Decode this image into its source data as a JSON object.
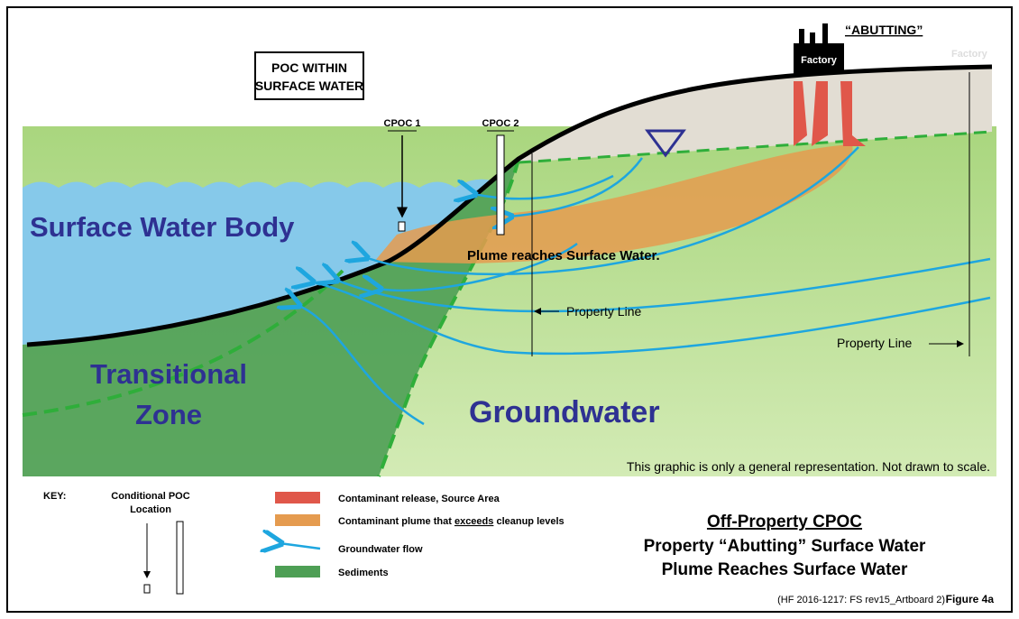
{
  "labels": {
    "abutting": "“ABUTTING”",
    "factory": "Factory",
    "factory_faint": "Factory",
    "poc_box": [
      "POC WITHIN",
      "SURFACE WATER"
    ],
    "cpoc1": "CPOC 1",
    "cpoc2": "CPOC 2",
    "surface_water": "Surface Water Body",
    "transitional_zone": [
      "Transitional",
      "Zone"
    ],
    "groundwater": "Groundwater",
    "plume": "Plume reaches Surface Water.",
    "property_line_1": "Property Line",
    "property_line_2": "Property Line",
    "disclaimer": "This graphic is only a general representation.  Not drawn to scale."
  },
  "key": {
    "title": "KEY:",
    "poc": [
      "Conditional POC",
      "Location"
    ],
    "source_area": "Contaminant release, Source Area",
    "plume": [
      "Contaminant plume that ",
      "exceeds",
      " cleanup levels"
    ],
    "flow": "Groundwater flow",
    "sediments": "Sediments"
  },
  "figure": {
    "title": "Off-Property CPOC",
    "lines": [
      "Property “Abutting” Surface Water",
      "Plume Reaches Surface Water"
    ],
    "source": "(HF 2016-1217: FS rev15_Artboard 2)",
    "number": "Figure 4a"
  }
}
